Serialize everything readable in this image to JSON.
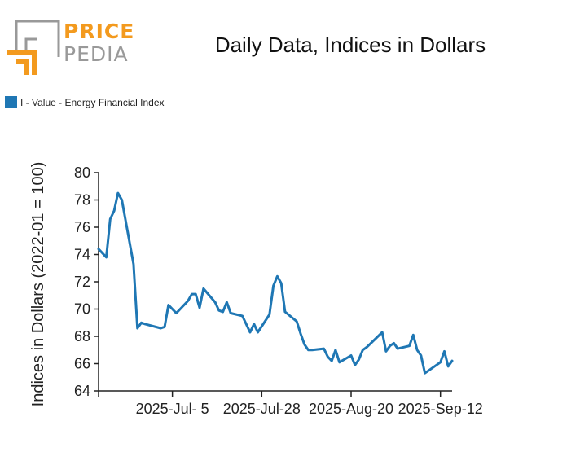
{
  "brand": {
    "word1": "PRICE",
    "word2": "PEDIA",
    "colors": {
      "orange": "#f39a1e",
      "gray": "#999999"
    }
  },
  "chart_data": {
    "type": "line",
    "title": "Daily Data, Indices in Dollars",
    "xlabel": "",
    "ylabel": "Indices in Dollars (2022-01 = 100)",
    "ylim": [
      64,
      80
    ],
    "yticks": [
      64,
      66,
      68,
      70,
      72,
      74,
      76,
      78,
      80
    ],
    "xlim": [
      "2025-06-16",
      "2025-09-15"
    ],
    "xticks": [
      {
        "date": "2025-07-05",
        "label": "2025-Jul- 5"
      },
      {
        "date": "2025-07-28",
        "label": "2025-Jul-28"
      },
      {
        "date": "2025-08-20",
        "label": "2025-Aug-20"
      },
      {
        "date": "2025-09-12",
        "label": "2025-Sep-12"
      }
    ],
    "legend_position": "top-left",
    "grid": false,
    "series": [
      {
        "name": "I - Value - Energy Financial Index",
        "color": "#1f77b4",
        "points": [
          [
            "2025-06-16",
            74.4
          ],
          [
            "2025-06-18",
            73.8
          ],
          [
            "2025-06-19",
            76.6
          ],
          [
            "2025-06-20",
            77.2
          ],
          [
            "2025-06-21",
            78.5
          ],
          [
            "2025-06-22",
            78.0
          ],
          [
            "2025-06-25",
            73.3
          ],
          [
            "2025-06-26",
            68.6
          ],
          [
            "2025-06-27",
            69.0
          ],
          [
            "2025-06-28",
            68.9
          ],
          [
            "2025-07-02",
            68.6
          ],
          [
            "2025-07-03",
            68.7
          ],
          [
            "2025-07-04",
            70.3
          ],
          [
            "2025-07-06",
            69.7
          ],
          [
            "2025-07-07",
            70.0
          ],
          [
            "2025-07-09",
            70.6
          ],
          [
            "2025-07-10",
            71.1
          ],
          [
            "2025-07-11",
            71.1
          ],
          [
            "2025-07-12",
            70.1
          ],
          [
            "2025-07-13",
            71.5
          ],
          [
            "2025-07-16",
            70.5
          ],
          [
            "2025-07-17",
            69.9
          ],
          [
            "2025-07-18",
            69.8
          ],
          [
            "2025-07-19",
            70.5
          ],
          [
            "2025-07-20",
            69.7
          ],
          [
            "2025-07-23",
            69.5
          ],
          [
            "2025-07-25",
            68.3
          ],
          [
            "2025-07-26",
            68.9
          ],
          [
            "2025-07-27",
            68.3
          ],
          [
            "2025-07-30",
            69.6
          ],
          [
            "2025-07-31",
            71.7
          ],
          [
            "2025-08-01",
            72.4
          ],
          [
            "2025-08-02",
            71.9
          ],
          [
            "2025-08-03",
            69.8
          ],
          [
            "2025-08-06",
            69.1
          ],
          [
            "2025-08-07",
            68.2
          ],
          [
            "2025-08-08",
            67.4
          ],
          [
            "2025-08-09",
            67.0
          ],
          [
            "2025-08-10",
            67.0
          ],
          [
            "2025-08-13",
            67.1
          ],
          [
            "2025-08-14",
            66.5
          ],
          [
            "2025-08-15",
            66.2
          ],
          [
            "2025-08-16",
            67.0
          ],
          [
            "2025-08-17",
            66.1
          ],
          [
            "2025-08-20",
            66.6
          ],
          [
            "2025-08-21",
            65.9
          ],
          [
            "2025-08-22",
            66.3
          ],
          [
            "2025-08-23",
            67.0
          ],
          [
            "2025-08-24",
            67.2
          ],
          [
            "2025-08-28",
            68.3
          ],
          [
            "2025-08-29",
            66.9
          ],
          [
            "2025-08-30",
            67.3
          ],
          [
            "2025-08-31",
            67.5
          ],
          [
            "2025-09-01",
            67.1
          ],
          [
            "2025-09-04",
            67.3
          ],
          [
            "2025-09-05",
            68.1
          ],
          [
            "2025-09-06",
            67.0
          ],
          [
            "2025-09-07",
            66.6
          ],
          [
            "2025-09-08",
            65.3
          ],
          [
            "2025-09-12",
            66.1
          ],
          [
            "2025-09-13",
            66.9
          ],
          [
            "2025-09-14",
            65.8
          ],
          [
            "2025-09-15",
            66.2
          ]
        ]
      }
    ]
  }
}
